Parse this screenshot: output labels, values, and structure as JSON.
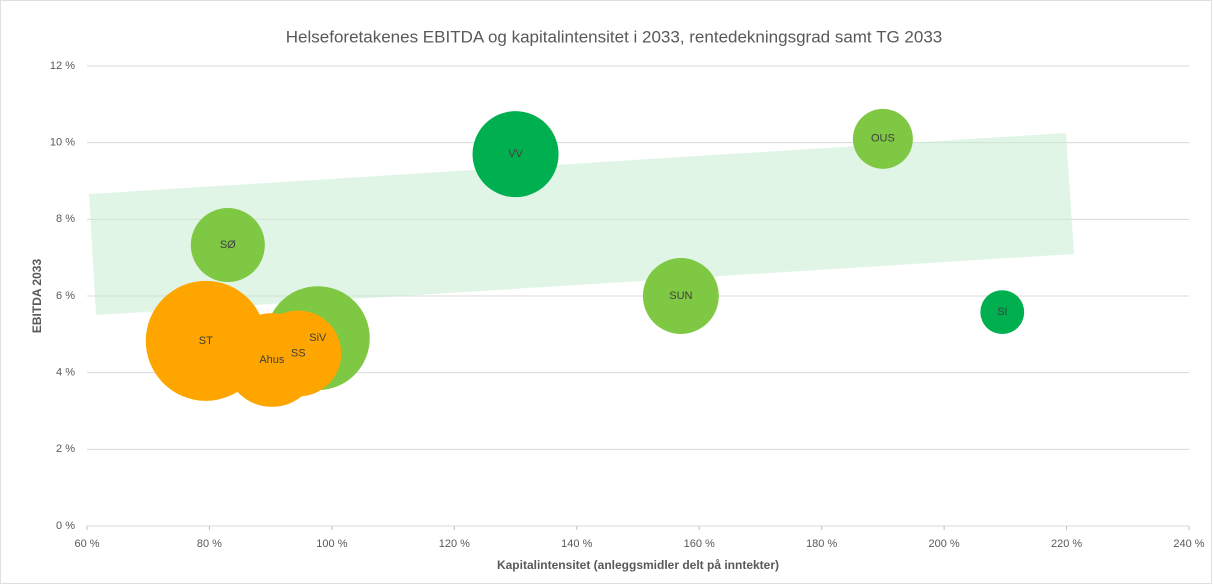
{
  "chart_data": {
    "type": "bubble",
    "title": "Helseforetakenes EBITDA og kapitalintensitet i 2033, rentedekningsgrad samt TG 2033",
    "x_label": "Kapitalintensitet (anleggsmidler delt på inntekter)",
    "y_label": "EBITDA 2033",
    "xlim": [
      60,
      240
    ],
    "xticks": [
      {
        "value": 60,
        "label": "60 %"
      },
      {
        "value": 80,
        "label": "80 %"
      },
      {
        "value": 100,
        "label": "100 %"
      },
      {
        "value": 120,
        "label": "120 %"
      },
      {
        "value": 140,
        "label": "140 %"
      },
      {
        "value": 160,
        "label": "160 %"
      },
      {
        "value": 180,
        "label": "180 %"
      },
      {
        "value": 200,
        "label": "200 %"
      },
      {
        "value": 220,
        "label": "220 %"
      },
      {
        "value": 240,
        "label": "240 %"
      }
    ],
    "ylim": [
      0,
      12
    ],
    "yticks": [
      {
        "value": 0,
        "label": "0 %"
      },
      {
        "value": 2,
        "label": "2 %"
      },
      {
        "value": 4,
        "label": "4 %"
      },
      {
        "value": 6,
        "label": "6 %"
      },
      {
        "value": 8,
        "label": "8 %"
      },
      {
        "value": 10,
        "label": "10 %"
      },
      {
        "value": 12,
        "label": "12 %"
      }
    ],
    "grid": true,
    "points": [
      {
        "label": "VV",
        "x": 130,
        "y": 9.7,
        "size": 18.5,
        "color": "#00b050"
      },
      {
        "label": "OUS",
        "x": 190,
        "y": 10.1,
        "size": 9,
        "color": "#7fc843"
      },
      {
        "label": "SØ",
        "x": 83,
        "y": 7.33,
        "size": 13.7,
        "color": "#7fc843"
      },
      {
        "label": "SUN",
        "x": 157,
        "y": 6.0,
        "size": 14.4,
        "color": "#7fc843"
      },
      {
        "label": "SI",
        "x": 209.5,
        "y": 5.58,
        "size": 4.8,
        "color": "#00b050"
      },
      {
        "label": "SiV",
        "x": 97.7,
        "y": 4.9,
        "size": 27,
        "color": "#7fc843"
      },
      {
        "label": "ST",
        "x": 79.4,
        "y": 4.83,
        "size": 36,
        "color": "#ffa500"
      },
      {
        "label": "Ahus",
        "x": 90.2,
        "y": 4.33,
        "size": 22,
        "color": "#ffa500"
      },
      {
        "label": "SS",
        "x": 94.5,
        "y": 4.5,
        "size": 18.5,
        "color": "#ffa500"
      }
    ]
  }
}
